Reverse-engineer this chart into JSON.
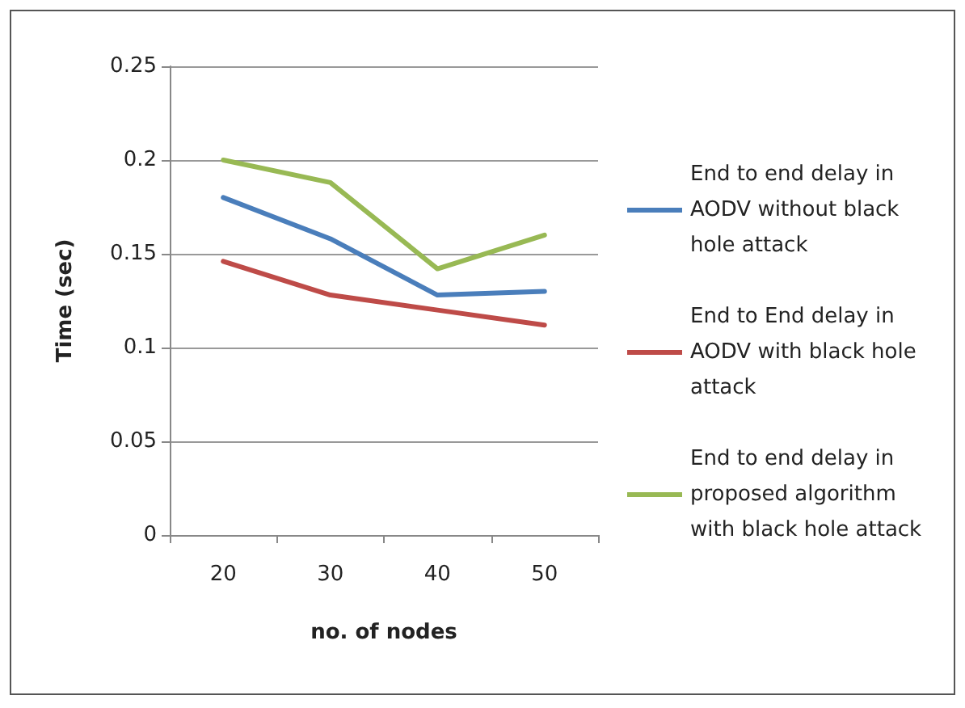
{
  "chart_data": {
    "type": "line",
    "xlabel": "no. of nodes",
    "ylabel": "Time (sec)",
    "categories": [
      "20",
      "30",
      "40",
      "50"
    ],
    "series": [
      {
        "name": "End to end delay in AODV without black hole attack",
        "color": "#4a7ebb",
        "values": [
          0.18,
          0.158,
          0.128,
          0.13
        ]
      },
      {
        "name": "End to End delay in AODV with black hole attack",
        "color": "#be4b48",
        "values": [
          0.146,
          0.128,
          0.12,
          0.112
        ]
      },
      {
        "name": "End to end delay in proposed algorithm with black hole attack",
        "color": "#98b954",
        "values": [
          0.2,
          0.188,
          0.142,
          0.16
        ]
      }
    ],
    "ylim": [
      0,
      0.25
    ],
    "yticks": [
      0,
      0.05,
      0.1,
      0.15,
      0.2,
      0.25
    ],
    "grid": "y",
    "legend": "right",
    "marker": "none",
    "line_style": "solid"
  }
}
